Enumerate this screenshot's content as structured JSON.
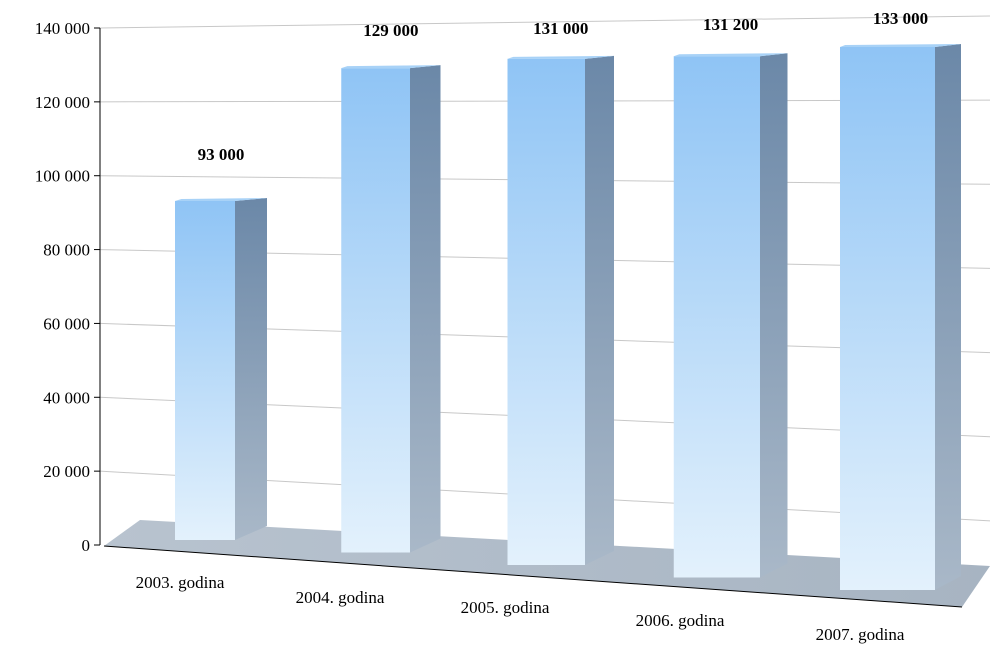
{
  "chart_data": {
    "type": "bar",
    "title": "",
    "xlabel": "",
    "ylabel": "",
    "categories": [
      "2003. godina",
      "2004. godina",
      "2005. godina",
      "2006. godina",
      "2007. godina"
    ],
    "values": [
      93000,
      129000,
      131000,
      131200,
      133000
    ],
    "data_labels": [
      "93 000",
      "129 000",
      "131 000",
      "131 200",
      "133 000"
    ],
    "ylim": [
      0,
      140000
    ],
    "yticks": [
      0,
      20000,
      40000,
      60000,
      80000,
      100000,
      120000,
      140000
    ],
    "ytick_labels": [
      "0",
      "20 000",
      "40 000",
      "60 000",
      "80 000",
      "100 000",
      "120 000",
      "140 000"
    ],
    "grid": true,
    "legend": "none",
    "style": "3d-perspective",
    "colors": {
      "bar_front_top": "#8fc4f5",
      "bar_front_bottom": "#e3f1fc",
      "bar_side_top": "#6b88a8",
      "bar_side_bottom": "#a9b8c8",
      "floor": "#a7b4c2",
      "gridline": "#c8c8c8"
    }
  }
}
